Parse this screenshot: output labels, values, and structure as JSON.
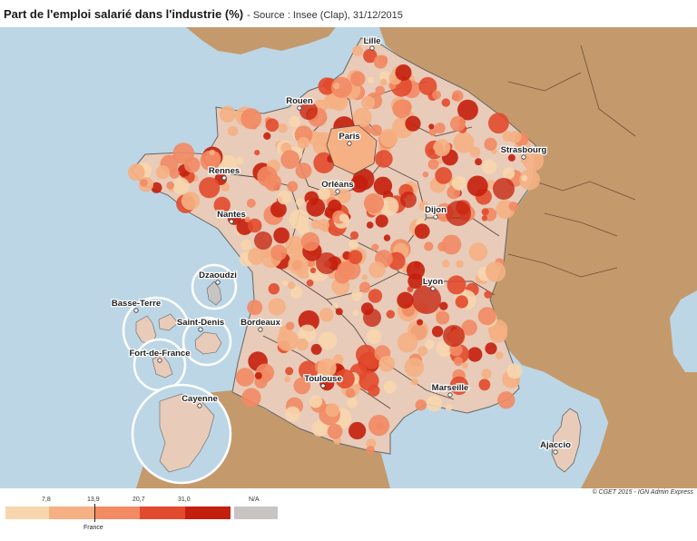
{
  "title": "Part de l'emploi salarié dans l'industrie (%)",
  "subtitle": "- Source : Insee (Clap), 31/12/2015",
  "credit": "© CGET 2015 - IGN Admin Express",
  "colors": {
    "sea": "#bcd6e6",
    "foreign_land": "#c49a6c",
    "class1": "#f7d6ae",
    "class2": "#f5b083",
    "class3": "#f28a64",
    "class4": "#e24a2e",
    "class5": "#c41f0c",
    "na": "#c8c4c4",
    "base": "#e8cbb8",
    "boundary": "#555555"
  },
  "legend": {
    "breaks": [
      "7,8",
      "13,9",
      "20,7",
      "31,0"
    ],
    "na_label": "N/A",
    "reference_label": "France"
  },
  "cities": [
    {
      "name": "Lille"
    },
    {
      "name": "Rouen"
    },
    {
      "name": "Paris"
    },
    {
      "name": "Strasbourg"
    },
    {
      "name": "Rennes"
    },
    {
      "name": "Orléans"
    },
    {
      "name": "Nantes"
    },
    {
      "name": "Dijon"
    },
    {
      "name": "Lyon"
    },
    {
      "name": "Bordeaux"
    },
    {
      "name": "Toulouse"
    },
    {
      "name": "Marseille"
    },
    {
      "name": "Ajaccio"
    }
  ],
  "overseas": [
    {
      "name": "Basse-Terre"
    },
    {
      "name": "Dzaoudzi"
    },
    {
      "name": "Saint-Denis"
    },
    {
      "name": "Fort-de-France"
    },
    {
      "name": "Cayenne"
    }
  ]
}
